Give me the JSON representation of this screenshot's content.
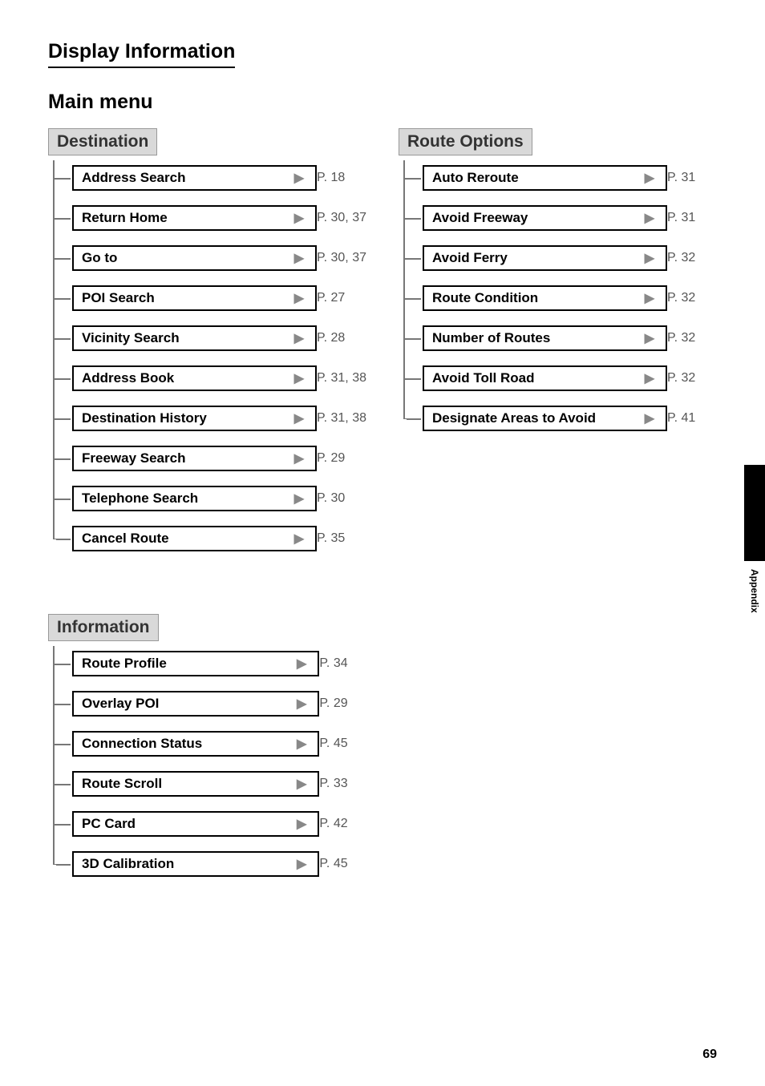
{
  "page_title": "Display Information",
  "section_title": "Main menu",
  "side_label": "Appendix",
  "page_number": "69",
  "groups": {
    "destination": {
      "header": "Destination",
      "items": [
        {
          "label": "Address Search",
          "page": "P. 18"
        },
        {
          "label": "Return Home",
          "page": "P. 30, 37"
        },
        {
          "label": "Go to",
          "page": "P. 30, 37"
        },
        {
          "label": "POI Search",
          "page": "P. 27"
        },
        {
          "label": "Vicinity Search",
          "page": "P. 28"
        },
        {
          "label": "Address Book",
          "page": "P. 31, 38"
        },
        {
          "label": "Destination History",
          "page": "P. 31, 38"
        },
        {
          "label": "Freeway Search",
          "page": "P. 29"
        },
        {
          "label": "Telephone Search",
          "page": "P. 30"
        },
        {
          "label": "Cancel Route",
          "page": "P. 35"
        }
      ]
    },
    "route_options": {
      "header": "Route Options",
      "items": [
        {
          "label": "Auto Reroute",
          "page": "P. 31"
        },
        {
          "label": "Avoid Freeway",
          "page": "P. 31"
        },
        {
          "label": "Avoid Ferry",
          "page": "P. 32"
        },
        {
          "label": "Route Condition",
          "page": "P. 32"
        },
        {
          "label": "Number of Routes",
          "page": "P. 32"
        },
        {
          "label": "Avoid Toll Road",
          "page": "P. 32"
        },
        {
          "label": "Designate Areas to Avoid",
          "page": "P. 41"
        }
      ]
    },
    "information": {
      "header": "Information",
      "items": [
        {
          "label": "Route Profile",
          "page": "P. 34"
        },
        {
          "label": "Overlay POI",
          "page": "P. 29"
        },
        {
          "label": "Connection Status",
          "page": "P. 45"
        },
        {
          "label": "Route Scroll",
          "page": "P. 33"
        },
        {
          "label": "PC Card",
          "page": "P. 42"
        },
        {
          "label": "3D Calibration",
          "page": "P. 45"
        }
      ]
    }
  }
}
